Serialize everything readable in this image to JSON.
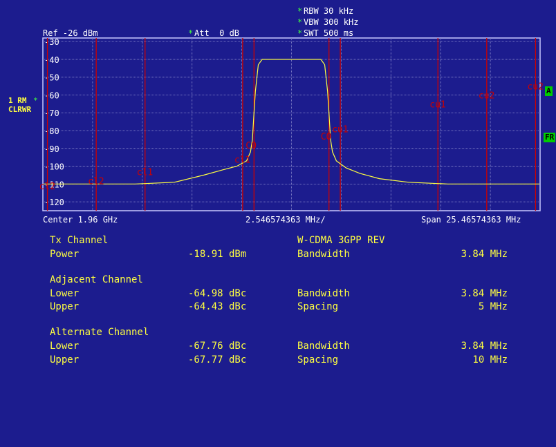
{
  "header": {
    "ref": "Ref -26 dBm",
    "att_star": "*",
    "att": "Att  0 dB",
    "rbw": "RBW 30 kHz",
    "vbw": "VBW 300 kHz",
    "swt": "SWT 500 ms",
    "star": "*"
  },
  "side": {
    "trace_label": "1 RM",
    "trace_star": "*",
    "trace_mode": "CLRWR",
    "tag_a": "A",
    "tag_fr": "FR"
  },
  "footer": {
    "center": "Center 1.96 GHz",
    "div": "2.546574363 MHz/",
    "span": "Span 25.46574363 MHz"
  },
  "chart_data": {
    "type": "line",
    "ylim": [
      -125,
      -28
    ],
    "xlim": [
      -12.732871815,
      12.732871815
    ],
    "y_ticks": [
      -30,
      -40,
      -50,
      -60,
      -70,
      -80,
      -90,
      -100,
      -110,
      -120
    ],
    "y_tick_labels": [
      "-30",
      "-40",
      "-50",
      "-60",
      "-70",
      "-80",
      "-90",
      "-100",
      "-110",
      "-120"
    ],
    "grid": true,
    "trace_color": "#ffff40",
    "limit_color": "#cc0000",
    "series": [
      {
        "x": [
          -12.7,
          -10,
          -8,
          -6,
          -4.5,
          -3.5,
          -2.8,
          -2.3,
          -2.1,
          -2.0,
          -1.92,
          -1.85,
          -1.7,
          -1.5,
          -1,
          0,
          1,
          1.5,
          1.7,
          1.85,
          1.92,
          2.0,
          2.1,
          2.3,
          2.8,
          3.5,
          4.5,
          6,
          8,
          10,
          12.7
        ],
        "y": [
          -110,
          -110,
          -110,
          -109,
          -105,
          -102,
          -100,
          -97,
          -92,
          -85,
          -70,
          -58,
          -43,
          -40,
          -40,
          -40,
          -40,
          -40,
          -43,
          -58,
          -70,
          -85,
          -92,
          -97,
          -101,
          -104,
          -107,
          -109,
          -110,
          -110,
          -110
        ]
      }
    ],
    "channel_lines": [
      {
        "label": "cl2",
        "x": -12.5,
        "y": -113
      },
      {
        "label": "cl2",
        "x": -10.0,
        "y": -110
      },
      {
        "label": "cl1",
        "x": -7.5,
        "y": -105
      },
      {
        "label": "cl1",
        "x": -2.5,
        "y": -98
      },
      {
        "label": "C0",
        "x": -1.92,
        "y": -90
      },
      {
        "label": "C0",
        "x": 1.92,
        "y": -85
      },
      {
        "label": "cu1",
        "x": 2.5,
        "y": -81
      },
      {
        "label": "cu1",
        "x": 7.5,
        "y": -67
      },
      {
        "label": "cu2",
        "x": 10.0,
        "y": -62
      },
      {
        "label": "cu2",
        "x": 12.5,
        "y": -57
      }
    ]
  },
  "results": {
    "tx_channel": "Tx Channel",
    "standard": "W-CDMA 3GPP REV",
    "power_label": "Power",
    "power_value": "-18.91 dBm",
    "bw_label": "Bandwidth",
    "bw_value": "3.84 MHz",
    "adj_channel": "Adjacent Channel",
    "adj_lower_label": "Lower",
    "adj_lower_value": "-64.98 dBc",
    "adj_bw_label": "Bandwidth",
    "adj_bw_value": "3.84 MHz",
    "adj_upper_label": "Upper",
    "adj_upper_value": "-64.43 dBc",
    "adj_spacing_label": "Spacing",
    "adj_spacing_value": "5 MHz",
    "alt_channel": "Alternate Channel",
    "alt_lower_label": "Lower",
    "alt_lower_value": "-67.76 dBc",
    "alt_bw_label": "Bandwidth",
    "alt_bw_value": "3.84 MHz",
    "alt_upper_label": "Upper",
    "alt_upper_value": "-67.77 dBc",
    "alt_spacing_label": "Spacing",
    "alt_spacing_value": "10 MHz"
  }
}
